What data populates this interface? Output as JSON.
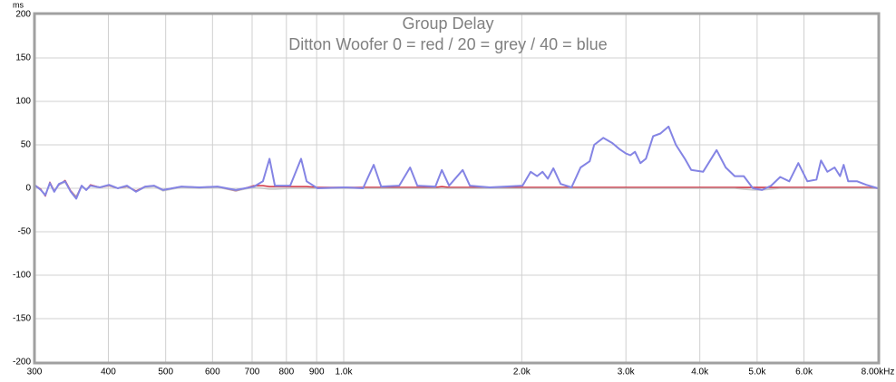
{
  "chart_data": {
    "type": "line",
    "title": "Group Delay",
    "subtitle": "Ditton Woofer   0 = red  /  20 = grey  /  40 = blue",
    "y_unit": "ms",
    "log_x": true,
    "grid": true,
    "xlim": [
      300,
      8000
    ],
    "ylim": [
      -200,
      200
    ],
    "yticks": [
      -200,
      -150,
      -100,
      -50,
      0,
      50,
      100,
      150,
      200
    ],
    "xticks": [
      300,
      400,
      500,
      600,
      700,
      800,
      900,
      {
        "value": 1000,
        "label": "1.0k"
      },
      {
        "value": 2000,
        "label": "2.0k"
      },
      {
        "value": 3000,
        "label": "3.0k"
      },
      {
        "value": 4000,
        "label": "4.0k"
      },
      {
        "value": 5000,
        "label": "5.0k"
      },
      {
        "value": 6000,
        "label": "6.0k"
      },
      {
        "value": 8000,
        "label": "8.00kHz"
      }
    ],
    "x": [
      300,
      307.5,
      313,
      318.6,
      324,
      330,
      338,
      345.5,
      353,
      360.5,
      367,
      373,
      387,
      401,
      415,
      430,
      445.5,
      461.5,
      478,
      495,
      531.5,
      570,
      612,
      657,
      705,
      730,
      749,
      765,
      812,
      847,
      865.5,
      903,
      1004,
      1078,
      1124,
      1157,
      1241,
      1295,
      1332,
      1429,
      1465,
      1507,
      1589,
      1634,
      1766,
      2006,
      2071,
      2123,
      2168,
      2214,
      2262,
      2327,
      2427,
      2515,
      2605,
      2651,
      2747,
      2846,
      2927,
      3000,
      3053,
      3108,
      3174,
      3242,
      3335,
      3431,
      3542,
      3644,
      3774,
      3869,
      4051,
      4271,
      4424,
      4583,
      4748,
      4919,
      5096,
      5279,
      5469,
      5666,
      5869,
      6080,
      6299,
      6411,
      6571,
      6760,
      6905,
      7003,
      7128,
      7382,
      7646,
      8000
    ],
    "series": [
      {
        "name": "0",
        "color": "#d03040",
        "values": [
          4,
          -1,
          -9,
          7,
          -3,
          4,
          9,
          -3,
          -10,
          3,
          -2,
          4,
          1,
          3,
          0,
          2,
          -3,
          2,
          3,
          -2,
          2,
          1,
          2,
          -3,
          3,
          3,
          2,
          2,
          2,
          2,
          2,
          1,
          1,
          1,
          1,
          1,
          1,
          1,
          1,
          1,
          2,
          1,
          1,
          1,
          1,
          1,
          1,
          1,
          1,
          1,
          1,
          1,
          1,
          1,
          1,
          1,
          1,
          1,
          1,
          1,
          1,
          1,
          1,
          1,
          1,
          1,
          1,
          1,
          1,
          1,
          1,
          1,
          1,
          1,
          1,
          1,
          1,
          1,
          1,
          1,
          1,
          1,
          1,
          1,
          1,
          1,
          1,
          1,
          1,
          1,
          1,
          0
        ]
      },
      {
        "name": "20",
        "color": "#b8b8b8",
        "values": [
          3,
          -2,
          -7,
          5,
          -3,
          4,
          7,
          -4,
          -9,
          2,
          -1,
          3,
          1,
          3,
          0,
          2,
          -4,
          1,
          2,
          -3,
          1,
          0,
          1,
          -3,
          1,
          0,
          -1,
          -1,
          0,
          0,
          0,
          0,
          0,
          0,
          0,
          0,
          0,
          0,
          0,
          0,
          0,
          0,
          0,
          0,
          0,
          0,
          0,
          0,
          0,
          0,
          0,
          0,
          0,
          0,
          0,
          0,
          0,
          0,
          0,
          0,
          0,
          0,
          0,
          0,
          0,
          0,
          0,
          0,
          0,
          0,
          0,
          0,
          0,
          0,
          -1,
          -2,
          -2,
          -1,
          0,
          0,
          0,
          0,
          0,
          0,
          0,
          0,
          0,
          0,
          0,
          0,
          0,
          0
        ]
      },
      {
        "name": "40",
        "color": "#8484e4",
        "values": [
          4,
          -2,
          -8,
          6,
          -4,
          5,
          8,
          -4,
          -12,
          3,
          -2,
          3,
          1,
          4,
          0,
          3,
          -4,
          2,
          3,
          -2,
          2,
          1,
          2,
          -2,
          2,
          8,
          34,
          3,
          3,
          34,
          8,
          0,
          1,
          0,
          27,
          2,
          3,
          24,
          3,
          2,
          21,
          3,
          21,
          3,
          1,
          3,
          19,
          14,
          19,
          11,
          23,
          5,
          1,
          24,
          31,
          50,
          58,
          52,
          45,
          40,
          38,
          42,
          29,
          34,
          60,
          63,
          71,
          50,
          34,
          21,
          19,
          44,
          24,
          14,
          14,
          0,
          -2,
          3,
          13,
          8,
          29,
          8,
          10,
          32,
          19,
          24,
          14,
          27,
          8,
          8,
          4,
          0
        ]
      }
    ]
  }
}
